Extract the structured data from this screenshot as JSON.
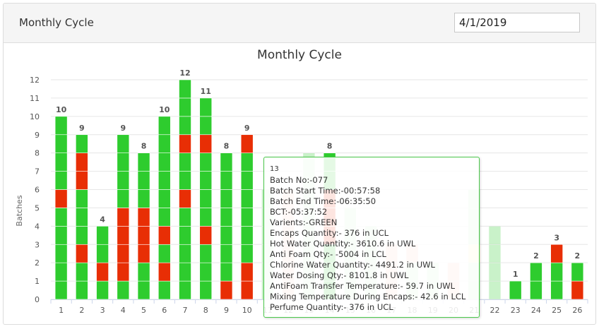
{
  "header": {
    "title": "Monthly Cycle",
    "date_value": "4/1/2019"
  },
  "colors": {
    "green": "#2ecc2e",
    "red": "#e82e05",
    "grid": "#e6e6e6",
    "axis": "#ccd6eb",
    "tooltip_border": "#4cc94c"
  },
  "chart_data": {
    "type": "bar",
    "stacked": true,
    "title": "Monthly Cycle",
    "ylabel": "Batches",
    "xlabel": "",
    "ylim": [
      0,
      12
    ],
    "yticks": [
      0,
      1,
      2,
      3,
      4,
      5,
      6,
      7,
      8,
      9,
      10,
      11,
      12
    ],
    "grid": true,
    "categories": [
      "1",
      "2",
      "3",
      "4",
      "5",
      "6",
      "7",
      "8",
      "9",
      "10",
      "11",
      "12",
      "13",
      "14",
      "15",
      "16",
      "17",
      "18",
      "19",
      "20",
      "21",
      "22",
      "23",
      "24",
      "25",
      "26"
    ],
    "totals": [
      10,
      9,
      4,
      9,
      8,
      10,
      12,
      11,
      8,
      9,
      null,
      null,
      null,
      8,
      null,
      null,
      null,
      null,
      null,
      null,
      null,
      null,
      1,
      2,
      3,
      2
    ],
    "days": [
      [
        "G",
        "G",
        "G",
        "G",
        "G",
        "R",
        "G",
        "G",
        "G",
        "G"
      ],
      [
        "G",
        "G",
        "R",
        "G",
        "G",
        "G",
        "R",
        "R",
        "G"
      ],
      [
        "G",
        "R",
        "G",
        "G"
      ],
      [
        "G",
        "R",
        "R",
        "R",
        "R",
        "G",
        "G",
        "G",
        "G"
      ],
      [
        "G",
        "G",
        "R",
        "R",
        "R",
        "G",
        "G",
        "G"
      ],
      [
        "G",
        "R",
        "G",
        "R",
        "G",
        "G",
        "G",
        "G",
        "G",
        "G"
      ],
      [
        "G",
        "G",
        "G",
        "G",
        "G",
        "R",
        "G",
        "G",
        "R",
        "G",
        "G",
        "G"
      ],
      [
        "G",
        "G",
        "G",
        "R",
        "G",
        "G",
        "G",
        "G",
        "R",
        "G",
        "G"
      ],
      [
        "R",
        "G",
        "G",
        "G",
        "G",
        "G",
        "G",
        "G"
      ],
      [
        "R",
        "R",
        "G",
        "G",
        "G",
        "G",
        "G",
        "G",
        "R"
      ],
      [
        "G",
        "G",
        "G",
        "G",
        "G",
        "G"
      ],
      [
        "R",
        "R",
        "R",
        "R",
        "R",
        "R"
      ],
      [
        "G",
        "G",
        "G",
        "G",
        "G",
        "G",
        "G",
        "G"
      ],
      [
        "G",
        "G",
        "G",
        "R",
        "R",
        "R",
        "G",
        "G"
      ],
      [
        "G",
        "G",
        "G",
        "G",
        "G"
      ],
      [
        "G",
        "G",
        "G",
        "G"
      ],
      [
        "R",
        "R",
        "R"
      ],
      [
        "G",
        "G",
        "R"
      ],
      [
        "G",
        "G"
      ],
      [
        "R",
        "R"
      ],
      [
        "G",
        "G",
        "Y",
        "G",
        "G",
        "G"
      ],
      [
        "G",
        "G",
        "G",
        "G"
      ],
      [
        "G"
      ],
      [
        "G",
        "G"
      ],
      [
        "G",
        "G",
        "R"
      ],
      [
        "R",
        "G"
      ]
    ],
    "faded_from_index": 10
  },
  "tooltip": {
    "header": "13",
    "lines": [
      "Batch No:-077",
      "Batch Start Time:-00:57:58",
      "Batch End Time:-06:35:50",
      "BCT:-05:37:52",
      "Varients:-GREEN",
      "Encaps Quantity:- 376 in UCL",
      "Hot Water Quantity:- 3610.6 in UWL",
      "Anti Foam Qty:- -5004 in LCL",
      "Chlorine Water Quantity:- 4491.2 in UWL",
      "Water Dosing Qty:- 8101.8 in UWL",
      "AntiFoam Transfer Temperature:- 59.7 in UWL",
      "Mixing Temperature During Encaps:- 42.6 in LCL",
      "Perfume Quantity:- 376 in UCL"
    ]
  }
}
